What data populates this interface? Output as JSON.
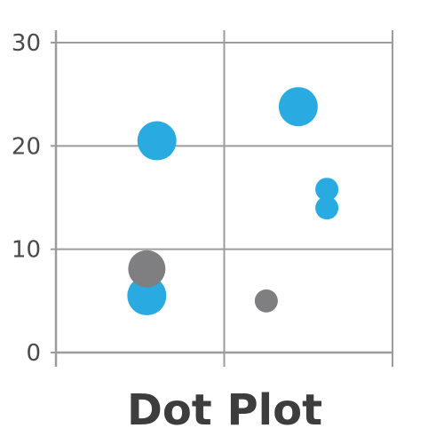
{
  "chart_data": {
    "type": "scatter",
    "title": "Dot Plot",
    "xlabel": "",
    "ylabel": "",
    "xlim": [
      0,
      2
    ],
    "ylim": [
      0,
      30
    ],
    "y_ticks": [
      "0",
      "10",
      "20",
      "30"
    ],
    "x_ticks": [
      "",
      "",
      ""
    ],
    "grid": true,
    "legend": "none",
    "colors": {
      "blue": "#29abe2",
      "gray": "#7f7f82",
      "grid": "#9c9c9c"
    },
    "points": [
      {
        "x": 0.6,
        "y": 20.5,
        "size": 22,
        "color": "#29abe2"
      },
      {
        "x": 1.44,
        "y": 23.8,
        "size": 22,
        "color": "#29abe2"
      },
      {
        "x": 1.61,
        "y": 15.8,
        "size": 13,
        "color": "#29abe2"
      },
      {
        "x": 1.61,
        "y": 14.0,
        "size": 13,
        "color": "#29abe2"
      },
      {
        "x": 0.54,
        "y": 5.5,
        "size": 22,
        "color": "#29abe2"
      },
      {
        "x": 0.54,
        "y": 8.1,
        "size": 21,
        "color": "#7f7f82"
      },
      {
        "x": 1.25,
        "y": 5.0,
        "size": 13,
        "color": "#7f7f82"
      }
    ]
  }
}
